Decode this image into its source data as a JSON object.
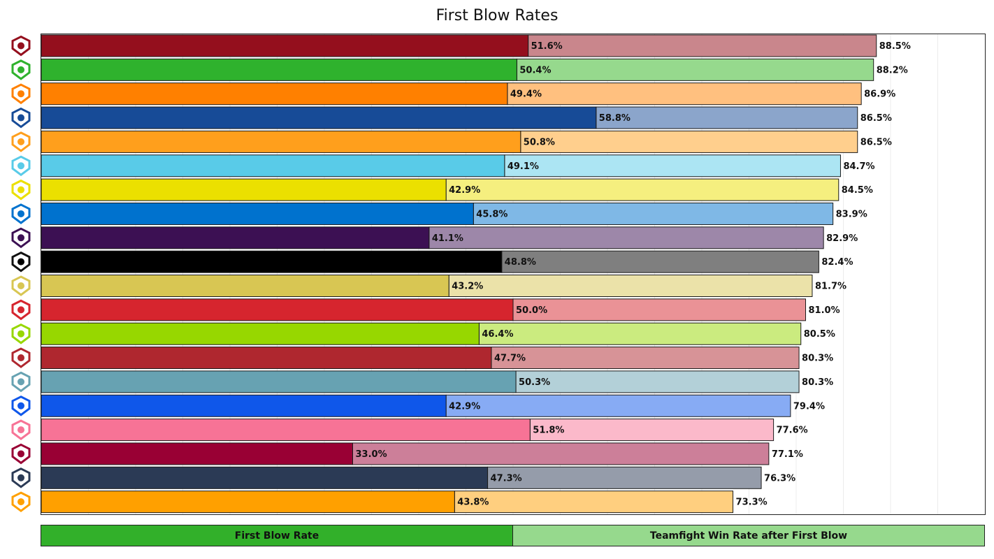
{
  "chart_data": {
    "type": "bar",
    "orientation": "horizontal",
    "title": "First Blow Rates",
    "xlim": [
      0,
      100
    ],
    "grid": true,
    "legend_placement": "bottom",
    "series": [
      {
        "name": "First Blow Rate",
        "values": [
          51.6,
          50.4,
          49.4,
          58.8,
          50.8,
          49.1,
          42.9,
          45.8,
          41.1,
          48.8,
          43.2,
          50.0,
          46.4,
          47.7,
          50.3,
          42.9,
          51.8,
          33.0,
          47.3,
          43.8
        ]
      },
      {
        "name": "Teamfight Win Rate after First Blow",
        "values": [
          88.5,
          88.2,
          86.9,
          86.5,
          86.5,
          84.7,
          84.5,
          83.9,
          82.9,
          82.4,
          81.7,
          81.0,
          80.5,
          80.3,
          80.3,
          79.4,
          77.6,
          77.1,
          76.3,
          73.3
        ]
      }
    ],
    "first_labels": [
      "51.6%",
      "50.4%",
      "49.4%",
      "58.8%",
      "50.8%",
      "49.1%",
      "42.9%",
      "45.8%",
      "41.1%",
      "48.8%",
      "43.2%",
      "50.0%",
      "46.4%",
      "47.7%",
      "50.3%",
      "42.9%",
      "51.8%",
      "33.0%",
      "47.3%",
      "43.8%"
    ],
    "second_labels": [
      "88.5%",
      "88.2%",
      "86.9%",
      "86.5%",
      "86.5%",
      "84.7%",
      "84.5%",
      "83.9%",
      "82.9%",
      "82.4%",
      "81.7%",
      "81.0%",
      "80.5%",
      "80.3%",
      "80.3%",
      "79.4%",
      "77.6%",
      "77.1%",
      "76.3%",
      "73.3%"
    ],
    "bar_colors": [
      "#940f1d",
      "#2fb22d",
      "#ff8000",
      "#174b97",
      "#ff9f1c",
      "#59cbe8",
      "#ebe000",
      "#0072ce",
      "#3c1053",
      "#000000",
      "#d8c653",
      "#d6252e",
      "#97d700",
      "#af272f",
      "#67a2b2",
      "#0f57ea",
      "#f77396",
      "#990034",
      "#2b3a55",
      "#ffa000"
    ],
    "light_colors": [
      "#c9868c",
      "#96d98d",
      "#ffc07f",
      "#8ba5cb",
      "#ffcf8d",
      "#ace5f3",
      "#f5ef7f",
      "#7fb8e6",
      "#9d87a9",
      "#7f7f7f",
      "#ebe2a9",
      "#ea9296",
      "#cbeb7f",
      "#d79397",
      "#b3d0d8",
      "#87abf4",
      "#fbb9ca",
      "#cc7f99",
      "#959caa",
      "#ffcf7f"
    ],
    "team_icons": [
      "atlanta-reign-icon",
      "houston-outlaws-icon",
      "san-francisco-shock-icon",
      "new-york-excelsior-icon",
      "philadelphia-fusion-icon",
      "london-spitfire-icon",
      "los-angeles-valiant-icon",
      "dallas-fuel-icon",
      "los-angeles-gladiators-icon",
      "toronto-defiant-icon",
      "seoul-dynasty-icon",
      "shanghai-dragons-icon",
      "vancouver-titans-icon",
      "florida-mayhem-icon",
      "guangzhou-charge-icon",
      "boston-uprising-icon",
      "hangzhou-spark-icon",
      "washington-justice-icon",
      "paris-eternal-icon",
      "chengdu-hunters-icon"
    ]
  },
  "legend": {
    "first_label": "First Blow Rate",
    "second_label": "Teamfight Win Rate after First Blow",
    "first_color": "#32b02a",
    "second_color": "#96d98d"
  }
}
